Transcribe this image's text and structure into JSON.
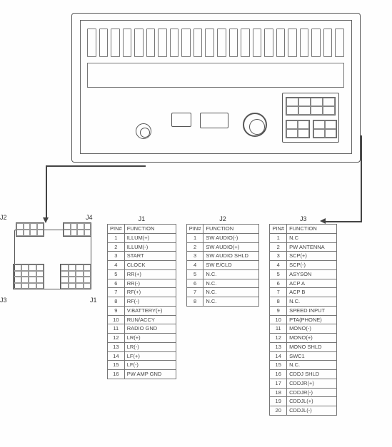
{
  "connector_labels": {
    "j1": "J1",
    "j2": "J2",
    "j3": "J3",
    "j4": "J4"
  },
  "table_headers": {
    "pin": "PIN#",
    "func": "FUNCTION"
  },
  "tables": {
    "j1": {
      "caption": "J1",
      "rows": [
        [
          "1",
          "ILLUM(+)"
        ],
        [
          "2",
          "ILLUM(-)"
        ],
        [
          "3",
          "START"
        ],
        [
          "4",
          "CLOCK"
        ],
        [
          "5",
          "RR(+)"
        ],
        [
          "6",
          "RR(-)"
        ],
        [
          "7",
          "RF(+)"
        ],
        [
          "8",
          "RF(-)"
        ],
        [
          "9",
          "V.BATTERY(+)"
        ],
        [
          "10",
          "RUN/ACCY"
        ],
        [
          "11",
          "RADIO GND"
        ],
        [
          "12",
          "LR(+)"
        ],
        [
          "13",
          "LR(-)"
        ],
        [
          "14",
          "LF(+)"
        ],
        [
          "15",
          "LF(-)"
        ],
        [
          "16",
          "PW AMP GND"
        ]
      ]
    },
    "j2": {
      "caption": "J2",
      "rows": [
        [
          "1",
          "SW AUDIO(-)"
        ],
        [
          "2",
          "SW AUDIO(+)"
        ],
        [
          "3",
          "SW AUDIO SHLD"
        ],
        [
          "4",
          "SW E/CLD"
        ],
        [
          "5",
          "N.C."
        ],
        [
          "6",
          "N.C."
        ],
        [
          "7",
          "N.C."
        ],
        [
          "8",
          "N.C."
        ]
      ]
    },
    "j3": {
      "caption": "J3",
      "rows": [
        [
          "1",
          "N.C"
        ],
        [
          "2",
          "PW ANTENNA"
        ],
        [
          "3",
          "SCP(+)"
        ],
        [
          "4",
          "SCP(-)"
        ],
        [
          "5",
          "ASYSON"
        ],
        [
          "6",
          "ACP A"
        ],
        [
          "7",
          "ACP B"
        ],
        [
          "8",
          "N.C."
        ],
        [
          "9",
          "SPEED INPUT"
        ],
        [
          "10",
          "PTA(PHONE)"
        ],
        [
          "11",
          "MONO(-)"
        ],
        [
          "12",
          "MONO(+)"
        ],
        [
          "13",
          "MONO SHLD"
        ],
        [
          "14",
          "SWC1"
        ],
        [
          "15",
          "N.C."
        ],
        [
          "16",
          "CDDJ SHLD"
        ],
        [
          "17",
          "CDDJR(+)"
        ],
        [
          "18",
          "CDDJR(-)"
        ],
        [
          "19",
          "CDDJL(+)"
        ],
        [
          "20",
          "CDDJL(-)"
        ]
      ]
    }
  },
  "style": {
    "page_bg": "#fefefe",
    "line_color": "#555555",
    "grid_color": "#888888",
    "text_color": "#333333",
    "table_border": "#777777",
    "font_size_body": 8,
    "font_size_label": 9,
    "font_size_cell": 7.5
  }
}
